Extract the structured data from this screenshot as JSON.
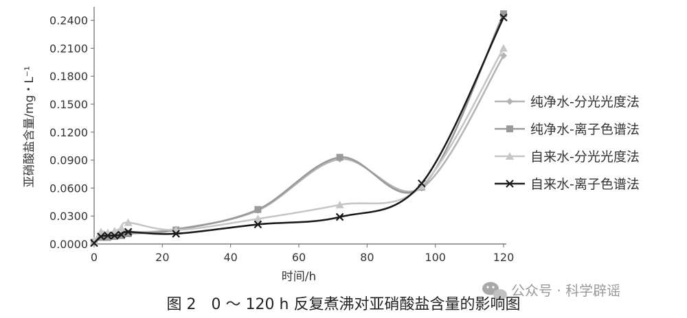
{
  "chart_data": {
    "type": "line",
    "title": "",
    "xlabel": "时间/h",
    "ylabel": "亚硝酸盐含量/mg・L⁻¹",
    "xlim": [
      0,
      120
    ],
    "ylim": [
      0,
      0.25
    ],
    "xticks": [
      0,
      20,
      40,
      60,
      80,
      100,
      120
    ],
    "xtick_labels": [
      "0",
      "20",
      "40",
      "60",
      "80",
      "100",
      "120"
    ],
    "yticks": [
      0,
      0.03,
      0.06,
      0.09,
      0.12,
      0.15,
      0.18,
      0.21,
      0.24
    ],
    "ytick_labels": [
      "0.0000",
      "0.0300",
      "0.0600",
      "0.0900",
      "0.1200",
      "0.1500",
      "0.1800",
      "0.2100",
      "0.2400"
    ],
    "grid": false,
    "legend_position": "right",
    "series": [
      {
        "name": "纯净水-分光光度法",
        "marker": "diamond",
        "color": "#b4b4b4",
        "x": [
          0,
          2,
          4,
          6,
          8,
          10,
          24,
          48,
          72,
          96,
          120
        ],
        "y": [
          0.002,
          0.008,
          0.007,
          0.009,
          0.01,
          0.012,
          0.016,
          0.036,
          0.091,
          0.06,
          0.202
        ]
      },
      {
        "name": "纯净水-离子色谱法",
        "marker": "square",
        "color": "#9a9a9a",
        "x": [
          0,
          2,
          4,
          6,
          8,
          10,
          24,
          48,
          72,
          96,
          120
        ],
        "y": [
          0.002,
          0.007,
          0.007,
          0.008,
          0.009,
          0.011,
          0.015,
          0.037,
          0.093,
          0.061,
          0.247
        ]
      },
      {
        "name": "自来水-分光光度法",
        "marker": "triangle",
        "color": "#c6c6c6",
        "x": [
          0,
          2,
          4,
          6,
          8,
          10,
          24,
          48,
          72,
          96,
          120
        ],
        "y": [
          0.003,
          0.013,
          0.012,
          0.014,
          0.017,
          0.023,
          0.015,
          0.027,
          0.042,
          0.062,
          0.21
        ]
      },
      {
        "name": "自来水-离子色谱法",
        "marker": "x",
        "color": "#1a1a1a",
        "x": [
          0,
          2,
          4,
          6,
          8,
          10,
          24,
          48,
          72,
          96,
          120
        ],
        "y": [
          0.001,
          0.008,
          0.009,
          0.009,
          0.01,
          0.013,
          0.011,
          0.021,
          0.029,
          0.065,
          0.243
        ]
      }
    ]
  },
  "caption": "图 2　0 ～ 120 h 反复煮沸对亚硝酸盐含量的影响图",
  "watermark": {
    "text": "公众号 · 科学辟谣",
    "icon": "wechat-icon"
  }
}
